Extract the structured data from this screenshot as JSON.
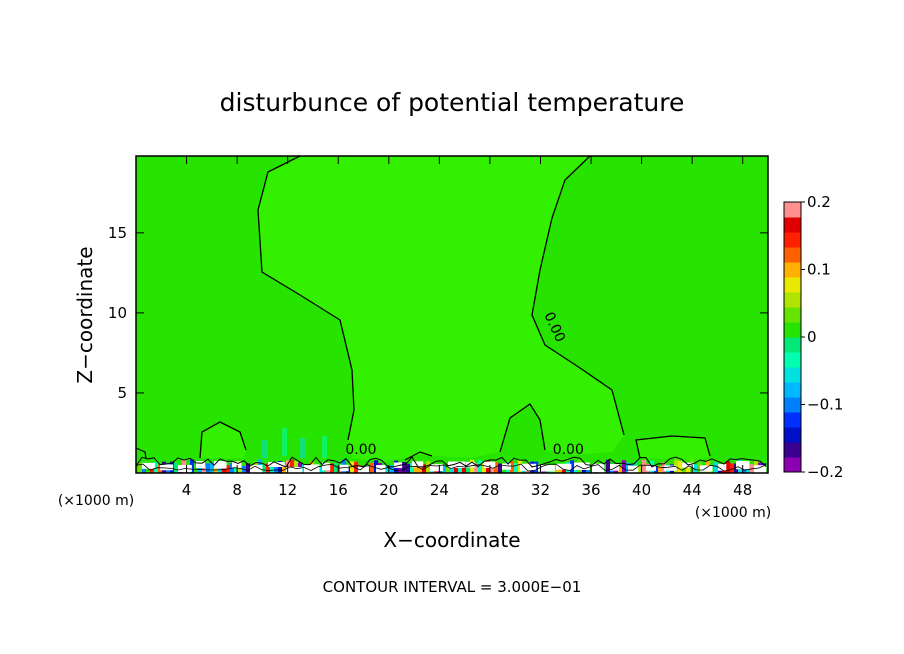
{
  "chart_data": {
    "type": "contour",
    "title": "disturbunce of potential temperature",
    "xlabel": "X−coordinate",
    "ylabel": "Z−coordinate",
    "x_unit_left": "(×1000 m)",
    "x_unit_right": "(×1000 m)",
    "xlim": [
      0,
      50
    ],
    "ylim": [
      0,
      19.8
    ],
    "x_ticks": [
      4,
      8,
      12,
      16,
      20,
      24,
      28,
      32,
      36,
      40,
      44,
      48
    ],
    "x_tick_labels": [
      "4",
      "8",
      "12",
      "16",
      "20",
      "24",
      "28",
      "32",
      "36",
      "40",
      "44",
      "48"
    ],
    "y_ticks": [
      5,
      10,
      15
    ],
    "y_tick_labels": [
      "5",
      "10",
      "15"
    ],
    "colorbar": {
      "min": -0.2,
      "max": 0.2,
      "tick_values": [
        -0.2,
        -0.1,
        0,
        0.1,
        0.2
      ],
      "tick_labels": [
        "−0.2",
        "−0.1",
        "0",
        "0.1",
        "0.2"
      ],
      "colors": [
        "#8b00b0",
        "#3a0090",
        "#0010c8",
        "#0030ff",
        "#0080ff",
        "#00b8ff",
        "#00e0e0",
        "#00ffb0",
        "#00e878",
        "#26e400",
        "#66e400",
        "#b0e400",
        "#e8e800",
        "#ffb000",
        "#ff6000",
        "#ff2000",
        "#e00000",
        "#ff9090"
      ]
    },
    "contour_labels": [
      {
        "text": "0.00",
        "x": 32.8,
        "z": 9.0,
        "angle": 65
      },
      {
        "text": "0.00",
        "x": 17.8,
        "z": 1.2,
        "angle": 0
      },
      {
        "text": "0.00",
        "x": 34.2,
        "z": 1.2,
        "angle": 0
      }
    ],
    "contour_interval_text": "CONTOUR INTERVAL = 3.000E−01",
    "background_value_color": "#26e400"
  }
}
